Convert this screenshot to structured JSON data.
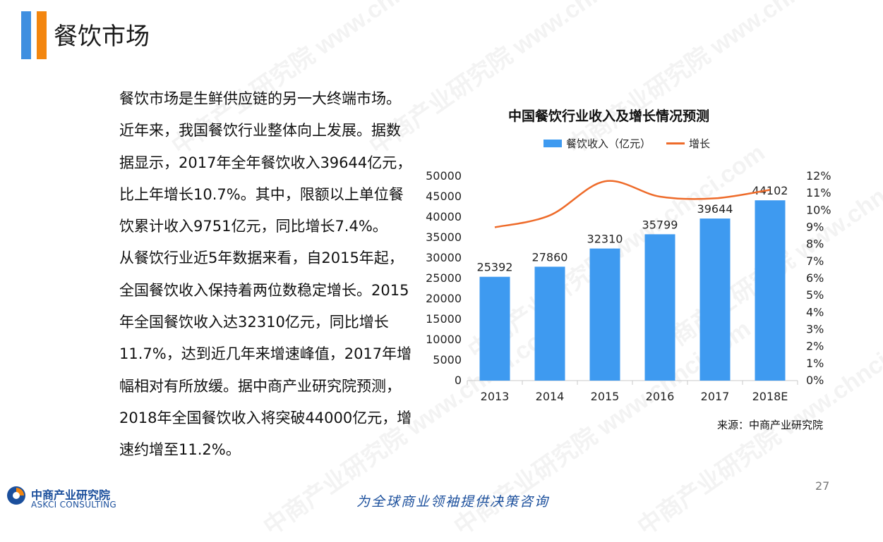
{
  "header": {
    "title": "餐饮市场"
  },
  "body": {
    "paragraphs": [
      "餐饮市场是生鲜供应链的另一大终端市场。近年来，我国餐饮行业整体向上发展。据数据显示，2017年全年餐饮收入39644亿元，比上年增长10.7%。其中，限额以上单位餐饮累计收入9751亿元，同比增长7.4%。",
      "从餐饮行业近5年数据来看，自2015年起，全国餐饮收入保持着两位数稳定增长。2015年全国餐饮收入达32310亿元，同比增长11.7%，达到近几年来增速峰值，2017年增幅相对有所放缓。据中商产业研究院预测，2018年全国餐饮收入将突破44000亿元，增速约增至11.2%。"
    ]
  },
  "chart_data": {
    "type": "bar",
    "title": "中国餐饮行业收入及增长情况预测",
    "categories": [
      "2013",
      "2014",
      "2015",
      "2016",
      "2017",
      "2018E"
    ],
    "series": [
      {
        "name": "餐饮收入（亿元）",
        "type": "bar",
        "axis": "left",
        "values": [
          25392,
          27860,
          32310,
          35799,
          39644,
          44102
        ],
        "color": "#3e9af0"
      },
      {
        "name": "增长",
        "type": "line",
        "axis": "right",
        "values": [
          9.0,
          9.7,
          11.7,
          10.8,
          10.7,
          11.2
        ],
        "color": "#ee6b2a"
      }
    ],
    "ylim_left": [
      0,
      50000
    ],
    "yticks_left": [
      "0",
      "5000",
      "10000",
      "15000",
      "20000",
      "25000",
      "30000",
      "35000",
      "40000",
      "45000",
      "50000"
    ],
    "ylim_right": [
      0,
      12
    ],
    "yticks_right": [
      "0%",
      "1%",
      "2%",
      "3%",
      "4%",
      "5%",
      "6%",
      "7%",
      "8%",
      "9%",
      "10%",
      "11%",
      "12%"
    ],
    "legend_position": "top",
    "grid": false
  },
  "source": "来源：中商产业研究院",
  "page_number": "27",
  "footer": {
    "logo_cn": "中商产业研究院",
    "logo_en": "ASKCI CONSULTING",
    "slogan": "为全球商业领袖提供决策咨询"
  },
  "watermark": "中商产业研究院 www.chnci.com",
  "colors": {
    "accent_blue": "#3f8fe0",
    "accent_orange": "#f3860f",
    "brand_blue": "#1b4f9c"
  }
}
